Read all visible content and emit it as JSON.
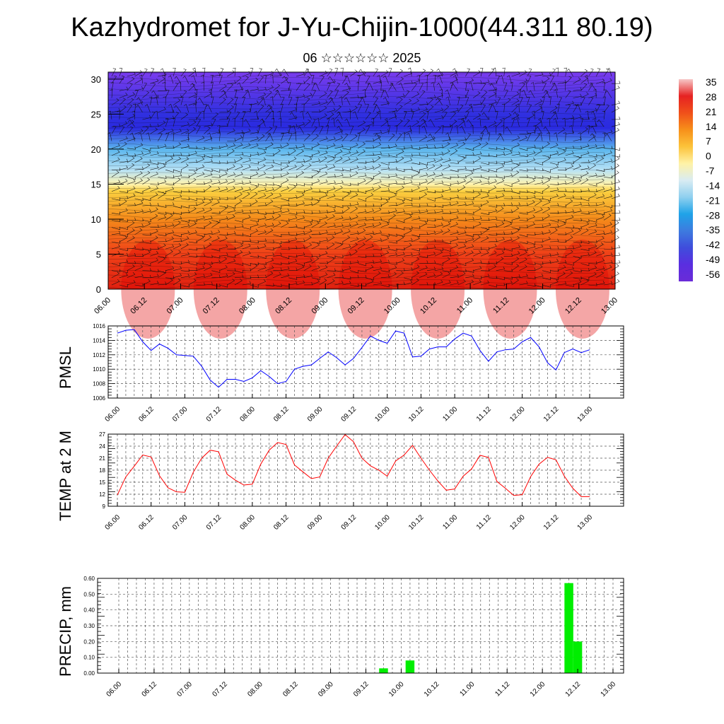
{
  "header": {
    "title": "Kazhydromet for J-Yu-Chijin-1000(44.311 80.19)",
    "subtitle": "06 ☆☆☆☆☆☆ 2025"
  },
  "colors": {
    "pmsl_line": "#0000ff",
    "temp_line": "#ff0000",
    "precip_bar": "#00ee00"
  },
  "chart_data": [
    {
      "type": "heatmap",
      "title": "",
      "x_ticks": [
        "06.00",
        "06.12",
        "07.00",
        "07.12",
        "08.00",
        "08.12",
        "09.00",
        "09.12",
        "10.00",
        "10.12",
        "11.00",
        "11.12",
        "12.00",
        "12.12",
        "13.00"
      ],
      "y_ticks": [
        "0",
        "5",
        "10",
        "15",
        "20",
        "25",
        "30"
      ],
      "ylim": [
        0,
        31
      ],
      "colorbar_labels": [
        "35",
        "28",
        "21",
        "14",
        "7",
        "0",
        "-7",
        "-14",
        "-21",
        "-28",
        "-35",
        "-42",
        "-49",
        "-56"
      ],
      "colorbar_colors": [
        "#f6c7c7",
        "#e62222",
        "#f0501a",
        "#f7901a",
        "#fcc33a",
        "#fff2a6",
        "#d9ecf3",
        "#8fd0ef",
        "#1fa3e8",
        "#3d7bdf",
        "#3f4ddc",
        "#5a2ee0",
        "#6a2cd8"
      ],
      "profile_levels": [
        0,
        5,
        10,
        14,
        15,
        17,
        20,
        23,
        25,
        31
      ],
      "profile_colors": [
        "#e02010",
        "#f04018",
        "#f58a1a",
        "#fbd040",
        "#fff4b0",
        "#b8e2f5",
        "#5bb6ee",
        "#2a2ae0",
        "#3030e0",
        "#7a3cee"
      ]
    },
    {
      "type": "line",
      "ylabel": "PMSL",
      "ylim": [
        1006,
        1016
      ],
      "y_ticks": [
        "1006",
        "1008",
        "1010",
        "1012",
        "1014",
        "1016"
      ],
      "x_ticks": [
        "06.00",
        "06.12",
        "07.00",
        "07.12",
        "08.00",
        "08.12",
        "09.00",
        "09.12",
        "10.00",
        "10.12",
        "11.00",
        "11.12",
        "12.00",
        "12.12",
        "13.00"
      ],
      "series": [
        {
          "values": [
            1015.0,
            1015.4,
            1015.5,
            1013.8,
            1012.6,
            1013.5,
            1012.9,
            1012.0,
            1011.9,
            1011.8,
            1010.4,
            1008.5,
            1007.5,
            1008.6,
            1008.6,
            1008.3,
            1008.8,
            1009.8,
            1009.0,
            1008.0,
            1008.3,
            1010.0,
            1010.4,
            1010.6,
            1011.5,
            1012.4,
            1011.6,
            1010.6,
            1011.5,
            1013.0,
            1014.6,
            1014.0,
            1013.6,
            1015.3,
            1015.0,
            1011.7,
            1011.8,
            1012.8,
            1013.1,
            1013.1,
            1014.2,
            1015.0,
            1014.6,
            1012.6,
            1011.1,
            1012.4,
            1012.7,
            1012.8,
            1013.8,
            1014.4,
            1013.1,
            1010.9,
            1009.9,
            1012.3,
            1012.8,
            1012.3,
            1012.7
          ]
        }
      ]
    },
    {
      "type": "line",
      "ylabel": "TEMP at 2 M",
      "ylim": [
        9,
        27
      ],
      "y_ticks": [
        "9",
        "12",
        "15",
        "18",
        "21",
        "24",
        "27"
      ],
      "x_ticks": [
        "06.00",
        "06.12",
        "07.00",
        "07.12",
        "08.00",
        "08.12",
        "09.00",
        "09.12",
        "10.00",
        "10.12",
        "11.00",
        "11.12",
        "12.00",
        "12.12",
        "13.00"
      ],
      "series": [
        {
          "values": [
            11.8,
            16.3,
            19.0,
            21.8,
            21.3,
            16.6,
            13.6,
            12.6,
            12.5,
            17.5,
            21.0,
            23.0,
            22.6,
            17.0,
            15.5,
            14.3,
            14.5,
            19.5,
            23.0,
            24.9,
            24.4,
            19.3,
            17.6,
            15.9,
            16.3,
            21.0,
            24.0,
            26.9,
            25.1,
            21.0,
            19.1,
            18.0,
            16.5,
            20.3,
            21.8,
            24.2,
            21.0,
            18.0,
            15.3,
            13.0,
            13.3,
            16.5,
            18.3,
            21.7,
            21.2,
            15.2,
            13.5,
            11.7,
            11.9,
            16.4,
            19.5,
            21.2,
            20.6,
            16.5,
            13.5,
            11.4,
            11.4
          ]
        }
      ]
    },
    {
      "type": "bar",
      "ylabel": "PRECIP, mm",
      "ylim": [
        0,
        0.6
      ],
      "y_ticks": [
        "0.00",
        "0.10",
        "0.20",
        "0.30",
        "0.40",
        "0.50",
        "0.60"
      ],
      "x_ticks": [
        "06.00",
        "06.12",
        "07.00",
        "07.12",
        "08.00",
        "08.12",
        "09.00",
        "09.12",
        "10.00",
        "10.12",
        "11.00",
        "11.12",
        "12.00",
        "12.12",
        "13.00"
      ],
      "series": [
        {
          "values": [
            0,
            0,
            0,
            0,
            0,
            0,
            0,
            0,
            0,
            0,
            0,
            0,
            0,
            0,
            0,
            0,
            0,
            0,
            0,
            0,
            0,
            0,
            0,
            0,
            0,
            0,
            0,
            0,
            0,
            0,
            0.03,
            0,
            0,
            0.08,
            0,
            0,
            0,
            0,
            0,
            0,
            0,
            0,
            0,
            0,
            0,
            0,
            0,
            0,
            0,
            0,
            0,
            0.57,
            0.2,
            0,
            0,
            0,
            0
          ]
        }
      ]
    }
  ]
}
